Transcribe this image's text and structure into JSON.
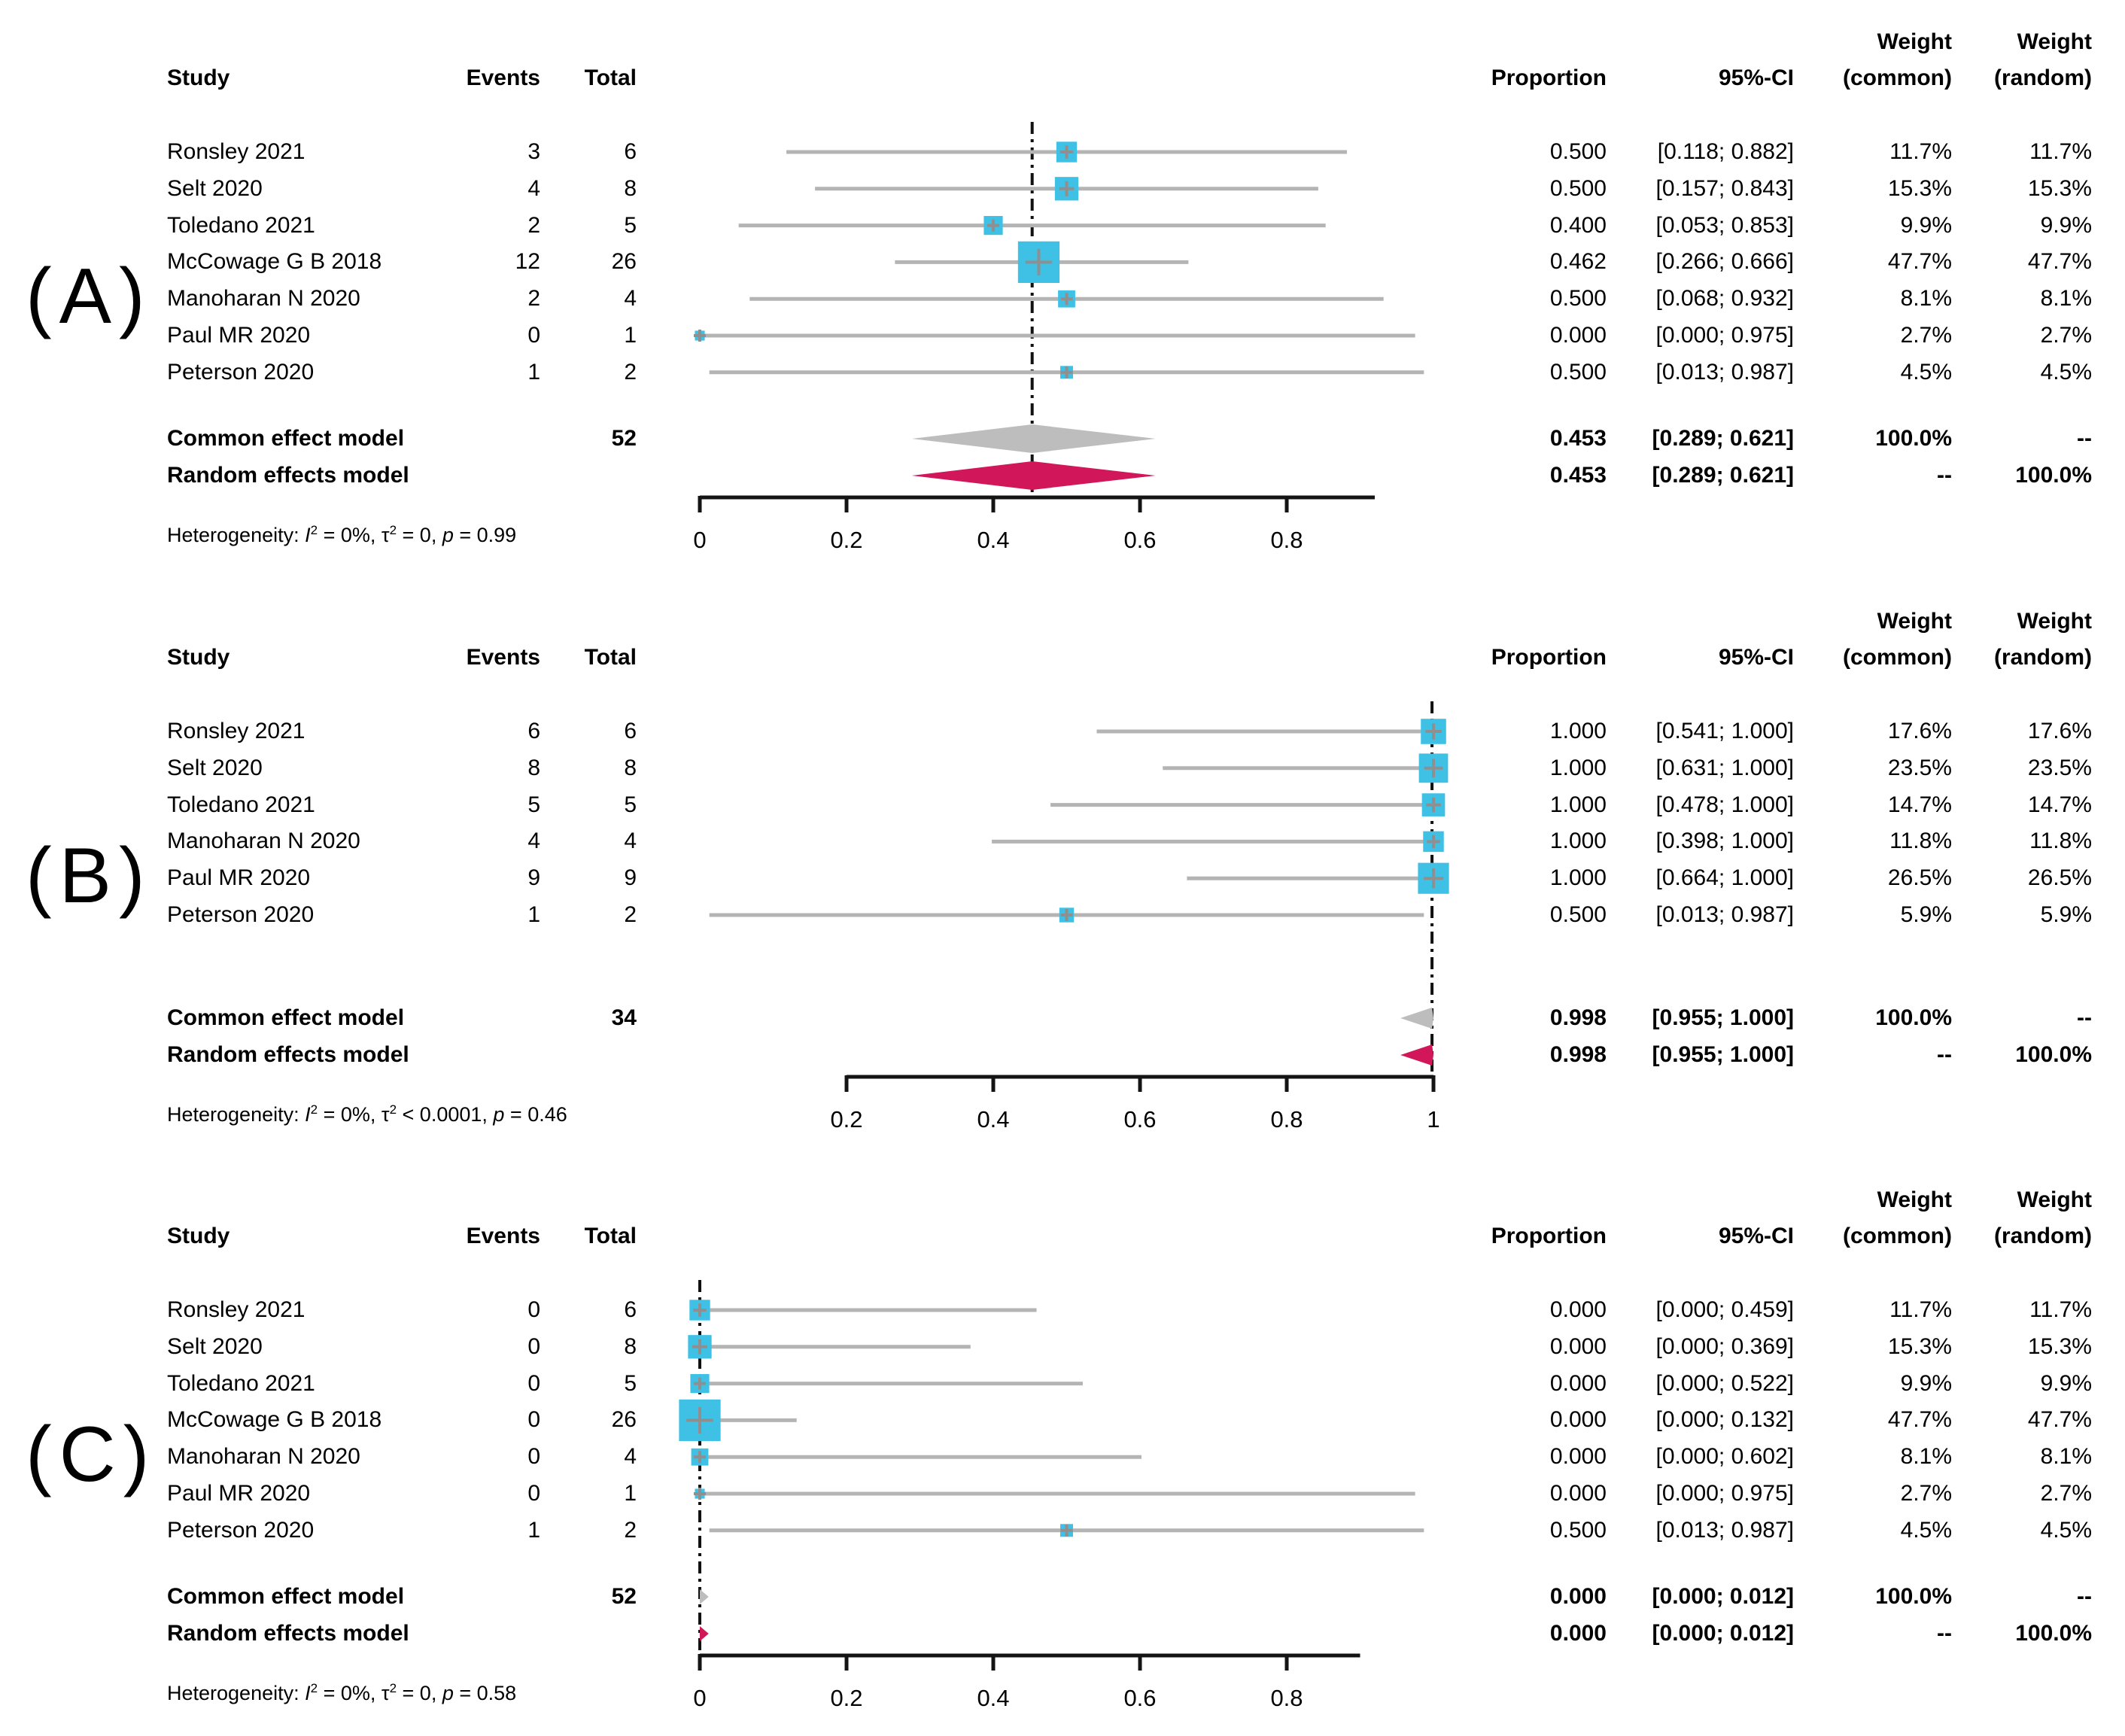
{
  "figure": {
    "background": "#ffffff"
  },
  "colors": {
    "square": "#3fc1e6",
    "ci_line": "#b4b4b4",
    "marker_cross": "#8f8f8f",
    "common_diamond": "#bdbdbd",
    "random_diamond": "#d2165a",
    "axis": "#141414",
    "dash_line": "#111111",
    "text": "#000000"
  },
  "columns": {
    "study": "Study",
    "events": "Events",
    "total": "Total",
    "proportion": "Proportion",
    "ci": "95%-CI",
    "weight_top": "Weight",
    "weight_common_sub": "(common)",
    "weight_random_sub": "(random)"
  },
  "chart_data": [
    {
      "type": "forest",
      "panel_label": "(A)",
      "studies": [
        {
          "name": "Ronsley 2021",
          "events": "3",
          "total": "6",
          "proportion": "0.500",
          "ci": "[0.118; 0.882]",
          "weight_common": "11.7%",
          "weight_random": "11.7%",
          "est": 0.5,
          "lo": 0.118,
          "hi": 0.882,
          "weight": 11.7
        },
        {
          "name": "Selt 2020",
          "events": "4",
          "total": "8",
          "proportion": "0.500",
          "ci": "[0.157; 0.843]",
          "weight_common": "15.3%",
          "weight_random": "15.3%",
          "est": 0.5,
          "lo": 0.157,
          "hi": 0.843,
          "weight": 15.3
        },
        {
          "name": "Toledano 2021",
          "events": "2",
          "total": "5",
          "proportion": "0.400",
          "ci": "[0.053; 0.853]",
          "weight_common": "9.9%",
          "weight_random": "9.9%",
          "est": 0.4,
          "lo": 0.053,
          "hi": 0.853,
          "weight": 9.9
        },
        {
          "name": "McCowage G B 2018",
          "events": "12",
          "total": "26",
          "proportion": "0.462",
          "ci": "[0.266; 0.666]",
          "weight_common": "47.7%",
          "weight_random": "47.7%",
          "est": 0.462,
          "lo": 0.266,
          "hi": 0.666,
          "weight": 47.7
        },
        {
          "name": "Manoharan N 2020",
          "events": "2",
          "total": "4",
          "proportion": "0.500",
          "ci": "[0.068; 0.932]",
          "weight_common": "8.1%",
          "weight_random": "8.1%",
          "est": 0.5,
          "lo": 0.068,
          "hi": 0.932,
          "weight": 8.1
        },
        {
          "name": "Paul MR 2020",
          "events": "0",
          "total": "1",
          "proportion": "0.000",
          "ci": "[0.000; 0.975]",
          "weight_common": "2.7%",
          "weight_random": "2.7%",
          "est": 0.0,
          "lo": 0.0,
          "hi": 0.975,
          "weight": 2.7
        },
        {
          "name": "Peterson 2020",
          "events": "1",
          "total": "2",
          "proportion": "0.500",
          "ci": "[0.013; 0.987]",
          "weight_common": "4.5%",
          "weight_random": "4.5%",
          "est": 0.5,
          "lo": 0.013,
          "hi": 0.987,
          "weight": 4.5
        }
      ],
      "common": {
        "label": "Common effect model",
        "total": "52",
        "proportion": "0.453",
        "ci": "[0.289; 0.621]",
        "weight_common": "100.0%",
        "weight_random": "--",
        "est": 0.453,
        "lo": 0.289,
        "hi": 0.621
      },
      "random": {
        "label": "Random effects model",
        "proportion": "0.453",
        "ci": "[0.289; 0.621]",
        "weight_common": "--",
        "weight_random": "100.0%",
        "est": 0.453,
        "lo": 0.289,
        "hi": 0.621
      },
      "heterogeneity": {
        "label": "Heterogeneity:",
        "i2": "0%",
        "tau2_op": "=",
        "tau2": "0",
        "p": "0.99"
      },
      "axis": {
        "min": 0,
        "max": 0.92,
        "tick_values": [
          0,
          0.2,
          0.4,
          0.6,
          0.8
        ],
        "tick_labels": [
          "0",
          "0.2",
          "0.4",
          "0.6",
          "0.8"
        ],
        "dash_at": 0.453
      }
    },
    {
      "type": "forest",
      "panel_label": "(B)",
      "studies": [
        {
          "name": "Ronsley 2021",
          "events": "6",
          "total": "6",
          "proportion": "1.000",
          "ci": "[0.541; 1.000]",
          "weight_common": "17.6%",
          "weight_random": "17.6%",
          "est": 1.0,
          "lo": 0.541,
          "hi": 1.0,
          "weight": 17.6
        },
        {
          "name": "Selt 2020",
          "events": "8",
          "total": "8",
          "proportion": "1.000",
          "ci": "[0.631; 1.000]",
          "weight_common": "23.5%",
          "weight_random": "23.5%",
          "est": 1.0,
          "lo": 0.631,
          "hi": 1.0,
          "weight": 23.5
        },
        {
          "name": "Toledano 2021",
          "events": "5",
          "total": "5",
          "proportion": "1.000",
          "ci": "[0.478; 1.000]",
          "weight_common": "14.7%",
          "weight_random": "14.7%",
          "est": 1.0,
          "lo": 0.478,
          "hi": 1.0,
          "weight": 14.7
        },
        {
          "name": "Manoharan N 2020",
          "events": "4",
          "total": "4",
          "proportion": "1.000",
          "ci": "[0.398; 1.000]",
          "weight_common": "11.8%",
          "weight_random": "11.8%",
          "est": 1.0,
          "lo": 0.398,
          "hi": 1.0,
          "weight": 11.8
        },
        {
          "name": "Paul MR 2020",
          "events": "9",
          "total": "9",
          "proportion": "1.000",
          "ci": "[0.664; 1.000]",
          "weight_common": "26.5%",
          "weight_random": "26.5%",
          "est": 1.0,
          "lo": 0.664,
          "hi": 1.0,
          "weight": 26.5
        },
        {
          "name": "Peterson 2020",
          "events": "1",
          "total": "2",
          "proportion": "0.500",
          "ci": "[0.013; 0.987]",
          "weight_common": "5.9%",
          "weight_random": "5.9%",
          "est": 0.5,
          "lo": 0.013,
          "hi": 0.987,
          "weight": 5.9
        }
      ],
      "common": {
        "label": "Common effect model",
        "total": "34",
        "proportion": "0.998",
        "ci": "[0.955; 1.000]",
        "weight_common": "100.0%",
        "weight_random": "--",
        "est": 0.998,
        "lo": 0.955,
        "hi": 1.0
      },
      "random": {
        "label": "Random effects model",
        "proportion": "0.998",
        "ci": "[0.955; 1.000]",
        "weight_common": "--",
        "weight_random": "100.0%",
        "est": 0.998,
        "lo": 0.955,
        "hi": 1.0
      },
      "heterogeneity": {
        "label": "Heterogeneity:",
        "i2": "0%",
        "tau2_op": "<",
        "tau2": "0.0001",
        "p": "0.46"
      },
      "axis": {
        "min": 0.2,
        "max": 1.0,
        "tick_values": [
          0.2,
          0.4,
          0.6,
          0.8,
          1.0
        ],
        "tick_labels": [
          "0.2",
          "0.4",
          "0.6",
          "0.8",
          "1"
        ],
        "dash_at": 0.998
      }
    },
    {
      "type": "forest",
      "panel_label": "(C)",
      "studies": [
        {
          "name": "Ronsley 2021",
          "events": "0",
          "total": "6",
          "proportion": "0.000",
          "ci": "[0.000; 0.459]",
          "weight_common": "11.7%",
          "weight_random": "11.7%",
          "est": 0.0,
          "lo": 0.0,
          "hi": 0.459,
          "weight": 11.7
        },
        {
          "name": "Selt 2020",
          "events": "0",
          "total": "8",
          "proportion": "0.000",
          "ci": "[0.000; 0.369]",
          "weight_common": "15.3%",
          "weight_random": "15.3%",
          "est": 0.0,
          "lo": 0.0,
          "hi": 0.369,
          "weight": 15.3
        },
        {
          "name": "Toledano 2021",
          "events": "0",
          "total": "5",
          "proportion": "0.000",
          "ci": "[0.000; 0.522]",
          "weight_common": "9.9%",
          "weight_random": "9.9%",
          "est": 0.0,
          "lo": 0.0,
          "hi": 0.522,
          "weight": 9.9
        },
        {
          "name": "McCowage G B 2018",
          "events": "0",
          "total": "26",
          "proportion": "0.000",
          "ci": "[0.000; 0.132]",
          "weight_common": "47.7%",
          "weight_random": "47.7%",
          "est": 0.0,
          "lo": 0.0,
          "hi": 0.132,
          "weight": 47.7
        },
        {
          "name": "Manoharan N 2020",
          "events": "0",
          "total": "4",
          "proportion": "0.000",
          "ci": "[0.000; 0.602]",
          "weight_common": "8.1%",
          "weight_random": "8.1%",
          "est": 0.0,
          "lo": 0.0,
          "hi": 0.602,
          "weight": 8.1
        },
        {
          "name": "Paul MR 2020",
          "events": "0",
          "total": "1",
          "proportion": "0.000",
          "ci": "[0.000; 0.975]",
          "weight_common": "2.7%",
          "weight_random": "2.7%",
          "est": 0.0,
          "lo": 0.0,
          "hi": 0.975,
          "weight": 2.7
        },
        {
          "name": "Peterson 2020",
          "events": "1",
          "total": "2",
          "proportion": "0.500",
          "ci": "[0.013; 0.987]",
          "weight_common": "4.5%",
          "weight_random": "4.5%",
          "est": 0.5,
          "lo": 0.013,
          "hi": 0.987,
          "weight": 4.5
        }
      ],
      "common": {
        "label": "Common effect model",
        "total": "52",
        "proportion": "0.000",
        "ci": "[0.000; 0.012]",
        "weight_common": "100.0%",
        "weight_random": "--",
        "est": 0.0,
        "lo": 0.0,
        "hi": 0.012
      },
      "random": {
        "label": "Random effects model",
        "proportion": "0.000",
        "ci": "[0.000; 0.012]",
        "weight_common": "--",
        "weight_random": "100.0%",
        "est": 0.0,
        "lo": 0.0,
        "hi": 0.012
      },
      "heterogeneity": {
        "label": "Heterogeneity:",
        "i2": "0%",
        "tau2_op": "=",
        "tau2": "0",
        "p": "0.58"
      },
      "axis": {
        "min": 0,
        "max": 0.9,
        "tick_values": [
          0,
          0.2,
          0.4,
          0.6,
          0.8
        ],
        "tick_labels": [
          "0",
          "0.2",
          "0.4",
          "0.6",
          "0.8"
        ],
        "dash_at": 0.0
      }
    }
  ]
}
